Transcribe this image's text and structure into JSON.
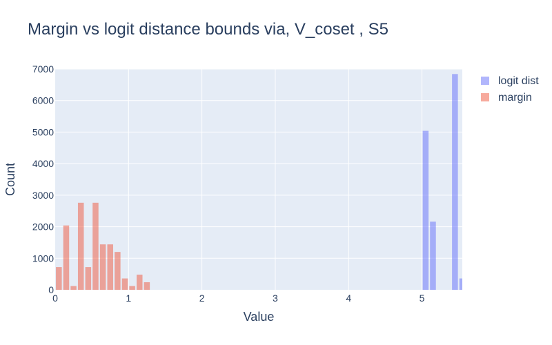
{
  "chart_data": {
    "type": "bar",
    "title": "Margin vs logit distance bounds via, V_coset , S5",
    "xlabel": "Value",
    "ylabel": "Count",
    "xlim": [
      0,
      5.55
    ],
    "ylim": [
      0,
      7000
    ],
    "x_ticks": [
      0,
      1,
      2,
      3,
      4,
      5
    ],
    "y_ticks": [
      0,
      1000,
      2000,
      3000,
      4000,
      5000,
      6000,
      7000
    ],
    "bin_width": 0.1,
    "grid": true,
    "legend_position": "top-right",
    "series": [
      {
        "name": "logit dist",
        "color": "#636efa",
        "opacity": 0.5,
        "x": [
          5.0,
          5.1,
          5.4,
          5.5
        ],
        "values": [
          5040,
          2160,
          6840,
          360
        ]
      },
      {
        "name": "margin",
        "color": "#ef553b",
        "opacity": 0.5,
        "x": [
          0.0,
          0.1,
          0.2,
          0.3,
          0.4,
          0.5,
          0.6,
          0.7,
          0.8,
          0.9,
          1.0,
          1.1,
          1.2
        ],
        "values": [
          720,
          2040,
          120,
          2760,
          720,
          2760,
          1440,
          1440,
          1200,
          360,
          120,
          480,
          240
        ]
      }
    ]
  }
}
